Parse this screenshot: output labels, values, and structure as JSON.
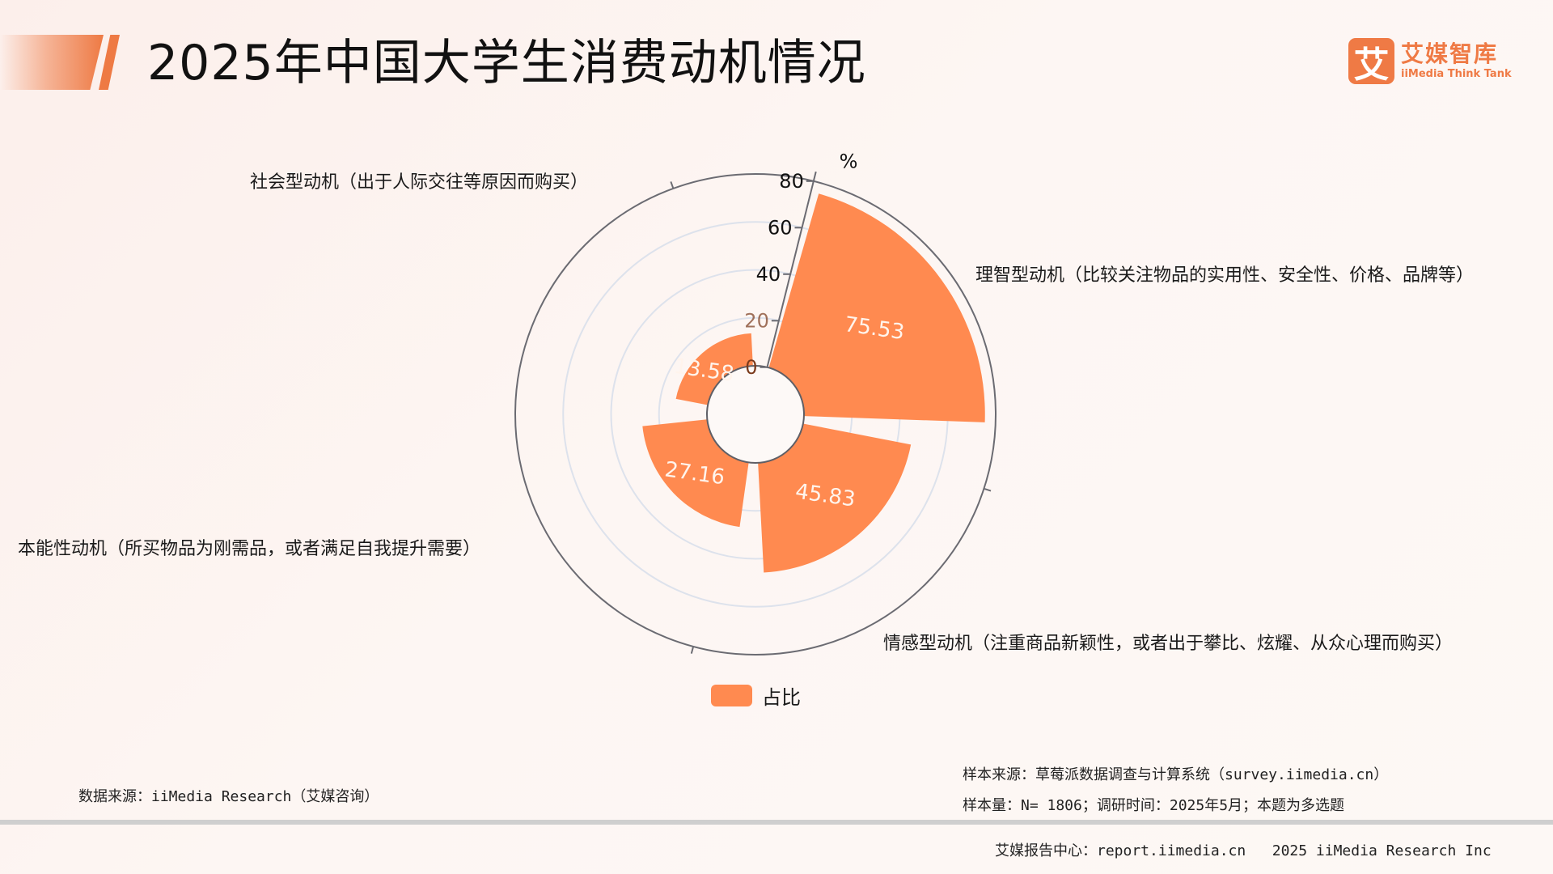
{
  "header": {
    "title": "2025年中国大学生消费动机情况",
    "logo": {
      "mark": "艾",
      "name_cn": "艾媒智库",
      "name_en": "iiMedia Think Tank"
    }
  },
  "chart_data": {
    "type": "polar-bar",
    "title": "2025年中国大学生消费动机情况",
    "radial_axis": {
      "unit": "%",
      "ticks": [
        0,
        20,
        40,
        60,
        80
      ],
      "range": [
        0,
        80
      ],
      "grid": true
    },
    "categories": [
      "理智型动机（比较关注物品的实用性、安全性、价格、品牌等）",
      "情感型动机（注重商品新颖性，或者出于攀比、炫耀、从众心理而购买）",
      "本能性动机（所买物品为刚需品，或者满足自我提升需要）",
      "社会型动机（出于人际交往等原因而购买）"
    ],
    "series": [
      {
        "name": "占比",
        "color": "#ff8a50",
        "values": [
          75.53,
          45.83,
          27.16,
          13.58
        ]
      }
    ],
    "value_labels": [
      "75.53",
      "45.83",
      "27.16",
      "13.58"
    ],
    "legend": {
      "position": "bottom",
      "entries": [
        "占比"
      ]
    }
  },
  "labels": {
    "social": "社会型动机（出于人际交往等原因而购买）",
    "rational": "理智型动机（比较关注物品的实用性、安全性、价格、品牌等）",
    "instinct": "本能性动机（所买物品为刚需品，或者满足自我提升需要）",
    "emotional": "情感型动机（注重商品新颖性，或者出于攀比、炫耀、从众心理而购买）"
  },
  "legend": {
    "label": "占比",
    "color": "#ff8a50"
  },
  "notes": {
    "data_source": "数据来源：iiMedia Research（艾媒咨询）",
    "sample_source": "样本来源：草莓派数据调查与计算系统（survey.iimedia.cn）",
    "sample_size": "样本量：N= 1806；调研时间：2025年5月；本题为多选题"
  },
  "footer": {
    "text": "艾媒报告中心：report.iimedia.cn   2025 iiMedia Research Inc"
  }
}
